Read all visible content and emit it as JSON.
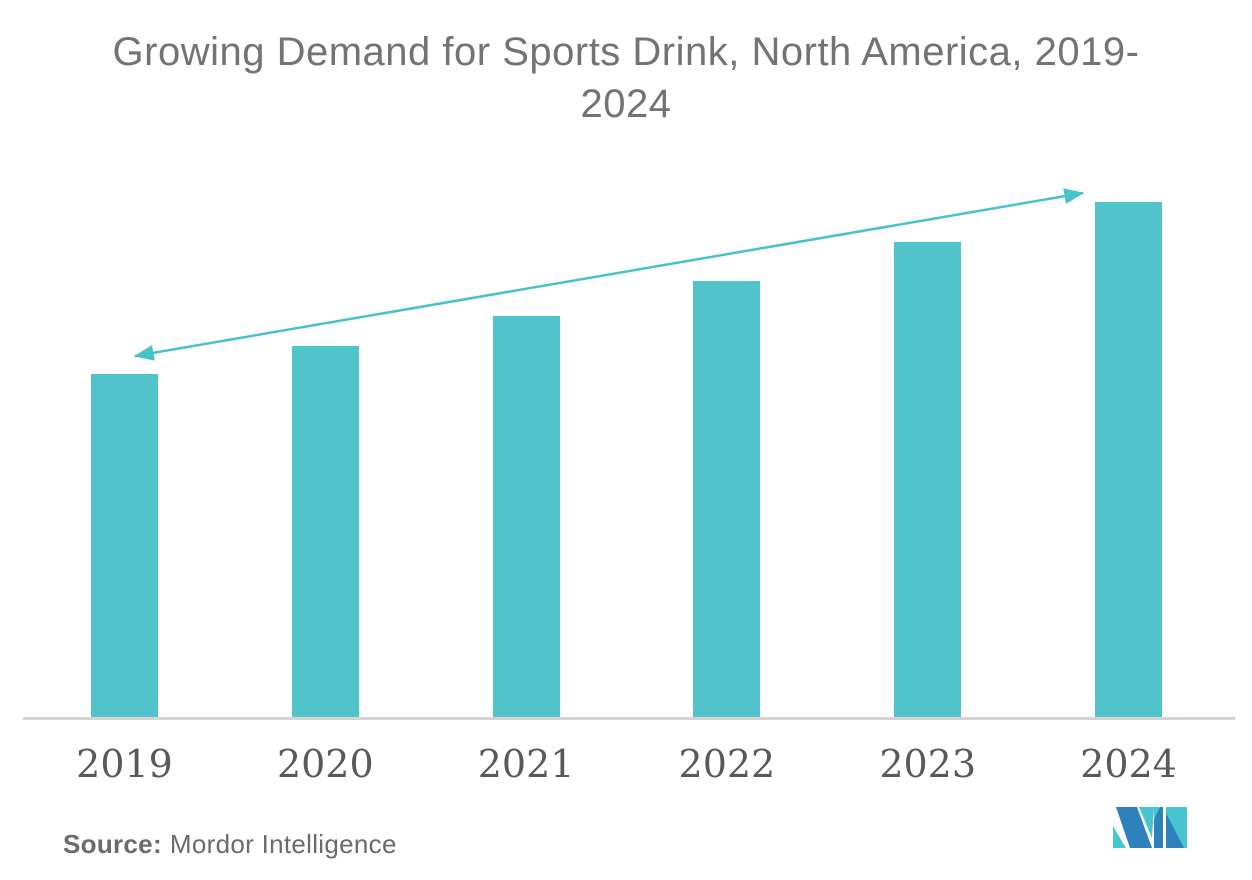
{
  "title": "Growing Demand for Sports Drink, North America, 2019-2024",
  "source": {
    "label": "Source:",
    "name": "Mordor Intelligence"
  },
  "logo": {
    "icon": "mordor-intelligence-logo"
  },
  "colors": {
    "bar": "#50C3CB",
    "arrow": "#48C2CA",
    "logo_blue": "#2E82BC",
    "logo_teal": "#46C5CF",
    "axis_line": "#D5D3D3",
    "title_text": "#737375",
    "tick_text": "#59595B",
    "source_text": "#6B6B6D"
  },
  "chart_data": {
    "type": "bar",
    "title": "Growing Demand for Sports Drink, North America, 2019-2024",
    "categories": [
      "2019",
      "2020",
      "2021",
      "2022",
      "2023",
      "2024"
    ],
    "values": [
      345,
      373,
      403,
      438,
      477,
      517
    ],
    "units": "relative bar height in px (chart shows no y-axis scale or data labels)",
    "xlabel": "",
    "ylabel": "",
    "legend": false,
    "gridlines": false,
    "y_axis_visible": false,
    "x_axis_line": true,
    "annotations": [
      "double-headed upward trend arrow spanning from above the 2019 bar to the top of the 2024 bar"
    ]
  }
}
